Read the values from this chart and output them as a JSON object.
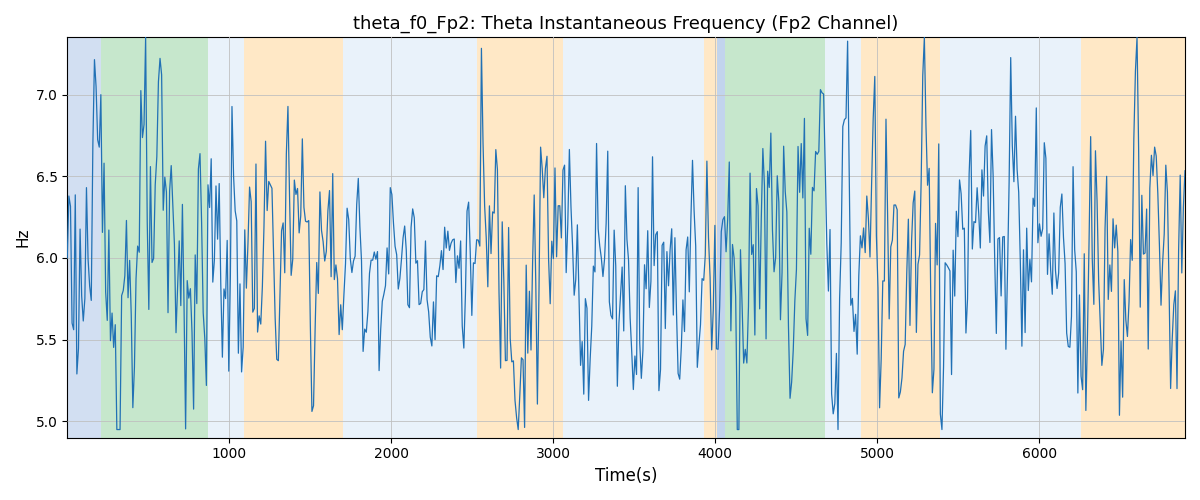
{
  "title": "theta_f0_Fp2: Theta Instantaneous Frequency (Fp2 Channel)",
  "xlabel": "Time(s)",
  "ylabel": "Hz",
  "xlim": [
    0,
    6900
  ],
  "ylim": [
    4.9,
    7.35
  ],
  "yticks": [
    5.0,
    5.5,
    6.0,
    6.5,
    7.0
  ],
  "xticks": [
    1000,
    2000,
    3000,
    4000,
    5000,
    6000
  ],
  "line_color": "#2171b5",
  "line_width": 0.9,
  "figsize": [
    12,
    5
  ],
  "dpi": 100,
  "bg_bands": [
    {
      "xmin": 0,
      "xmax": 210,
      "color": "#aec6e8",
      "alpha": 0.55
    },
    {
      "xmin": 210,
      "xmax": 870,
      "color": "#98d4a3",
      "alpha": 0.55
    },
    {
      "xmin": 870,
      "xmax": 1090,
      "color": "#d0e4f5",
      "alpha": 0.45
    },
    {
      "xmin": 1090,
      "xmax": 1700,
      "color": "#ffd9a0",
      "alpha": 0.6
    },
    {
      "xmin": 1700,
      "xmax": 2530,
      "color": "#d0e4f5",
      "alpha": 0.45
    },
    {
      "xmin": 2530,
      "xmax": 3060,
      "color": "#ffd9a0",
      "alpha": 0.6
    },
    {
      "xmin": 3060,
      "xmax": 3930,
      "color": "#d0e4f5",
      "alpha": 0.45
    },
    {
      "xmin": 3930,
      "xmax": 4010,
      "color": "#ffd9a0",
      "alpha": 0.6
    },
    {
      "xmin": 4010,
      "xmax": 4060,
      "color": "#aec6e8",
      "alpha": 0.75
    },
    {
      "xmin": 4060,
      "xmax": 4680,
      "color": "#98d4a3",
      "alpha": 0.55
    },
    {
      "xmin": 4680,
      "xmax": 4900,
      "color": "#d0e4f5",
      "alpha": 0.45
    },
    {
      "xmin": 4900,
      "xmax": 5390,
      "color": "#ffd9a0",
      "alpha": 0.6
    },
    {
      "xmin": 5390,
      "xmax": 5600,
      "color": "#d0e4f5",
      "alpha": 0.45
    },
    {
      "xmin": 5600,
      "xmax": 5750,
      "color": "#d0e4f5",
      "alpha": 0.45
    },
    {
      "xmin": 5750,
      "xmax": 6260,
      "color": "#d0e4f5",
      "alpha": 0.45
    },
    {
      "xmin": 6260,
      "xmax": 6900,
      "color": "#ffd9a0",
      "alpha": 0.6
    }
  ],
  "n_samples": 700,
  "seed": 123,
  "base_freq": 6.0,
  "noise_std": 0.38
}
